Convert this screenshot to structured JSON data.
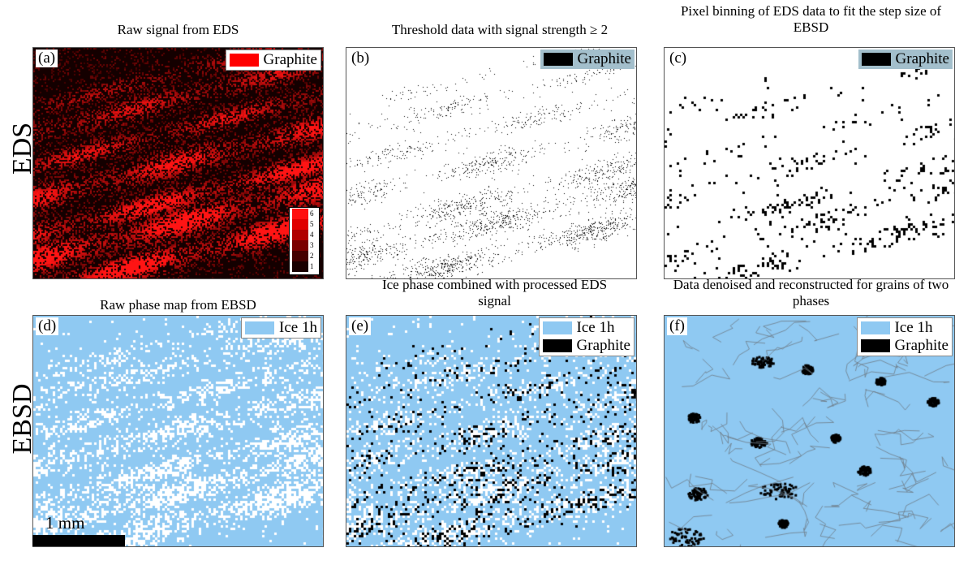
{
  "rows": {
    "top": "EDS",
    "bottom": "EBSD"
  },
  "panels": [
    {
      "id": "a",
      "letter": "(a)",
      "title": "Raw signal from EDS",
      "legend": [
        {
          "label": "Graphite",
          "color": "#ff0000"
        }
      ],
      "legend_style": "white",
      "kind": "eds-raw"
    },
    {
      "id": "b",
      "letter": "(b)",
      "title": "Threshold data with signal strength ≥ 2",
      "legend": [
        {
          "label": "Graphite",
          "color": "#000000"
        }
      ],
      "legend_style": "grey",
      "kind": "threshold"
    },
    {
      "id": "c",
      "letter": "(c)",
      "title": "Pixel binning of EDS data to fit the step size of EBSD",
      "legend": [
        {
          "label": "Graphite",
          "color": "#000000"
        }
      ],
      "legend_style": "grey",
      "kind": "binned"
    },
    {
      "id": "d",
      "letter": "(d)",
      "title": "Raw phase map from EBSD",
      "legend": [
        {
          "label": "Ice 1h",
          "color": "#8fc9f2"
        }
      ],
      "legend_style": "white",
      "kind": "ebsd-raw"
    },
    {
      "id": "e",
      "letter": "(e)",
      "title": "Ice phase combined with processed EDS signal",
      "legend": [
        {
          "label": "Ice 1h",
          "color": "#8fc9f2"
        },
        {
          "label": "Graphite",
          "color": "#000000"
        }
      ],
      "legend_style": "white",
      "kind": "combined"
    },
    {
      "id": "f",
      "letter": "(f)",
      "title": "Data denoised and reconstructed for grains of two phases",
      "legend": [
        {
          "label": "Ice 1h",
          "color": "#8fc9f2"
        },
        {
          "label": "Graphite",
          "color": "#000000"
        }
      ],
      "legend_style": "white",
      "kind": "grains"
    }
  ],
  "colorbar": {
    "labels": [
      "6",
      "5",
      "4",
      "3",
      "2",
      "1"
    ],
    "colors": [
      "#ff1010",
      "#e00000",
      "#b00000",
      "#7a0000",
      "#450000",
      "#1a0000"
    ]
  },
  "scalebar": {
    "label": "1 mm"
  },
  "colors": {
    "ice": "#8fc9f2",
    "graphite_eds": "#ff0000",
    "graphite": "#000000",
    "background_eds": "#140000",
    "grain_boundary": "#6e7c88"
  }
}
